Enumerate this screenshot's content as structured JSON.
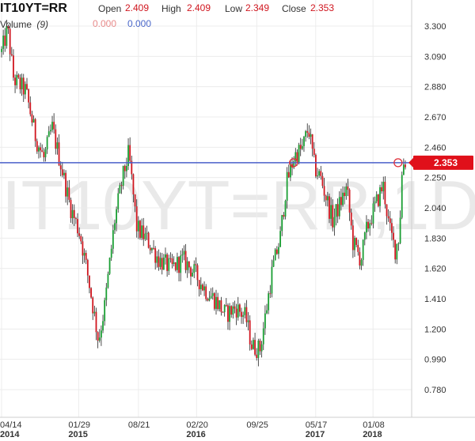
{
  "header": {
    "ticker": "IT10YT=RR",
    "open_label": "Open",
    "open_value": "2.409",
    "high_label": "High",
    "high_value": "2.409",
    "low_label": "Low",
    "low_value": "2.349",
    "close_label": "Close",
    "close_value": "2.353",
    "volume_label": "Volume",
    "volume_period": "(9)",
    "volume_value_a": "0.000",
    "volume_value_b": "0.000"
  },
  "watermark": "IT10YT=RR,1D",
  "colors": {
    "up": "#1a9e33",
    "down": "#d0161f",
    "wick": "#222222",
    "hline": "#4a5fc9",
    "price_tag": "#e0101a",
    "marker": "#e0303a",
    "grid": "#ececec"
  },
  "chart_data": {
    "type": "candlestick",
    "title": "",
    "xlabel": "",
    "ylabel": "",
    "ylim": [
      0.69,
      3.42
    ],
    "y_ticks": [
      "3.300",
      "3.090",
      "2.880",
      "2.670",
      "2.460",
      "2.250",
      "2.040",
      "1.830",
      "1.620",
      "1.410",
      "1.200",
      "0.990",
      "0.780"
    ],
    "x_ticks": [
      {
        "label": "04/14",
        "year": "2014",
        "index": 0
      },
      {
        "label": "01/29",
        "year": "2015",
        "index": 0.191
      },
      {
        "label": "08/21",
        "year": "",
        "index": 0.339
      },
      {
        "label": "02/20",
        "year": "2016",
        "index": 0.483
      },
      {
        "label": "09/25",
        "year": "",
        "index": 0.632
      },
      {
        "label": "05/17",
        "year": "2017",
        "index": 0.778
      },
      {
        "label": "01/08",
        "year": "2018",
        "index": 0.92
      }
    ],
    "horizontal_line": 2.353,
    "last_price": "2.353",
    "path_keypoints": [
      [
        0.0,
        3.12
      ],
      [
        0.015,
        3.28
      ],
      [
        0.03,
        2.93
      ],
      [
        0.06,
        2.85
      ],
      [
        0.085,
        2.52
      ],
      [
        0.105,
        2.38
      ],
      [
        0.125,
        2.6
      ],
      [
        0.15,
        2.3
      ],
      [
        0.17,
        2.05
      ],
      [
        0.195,
        1.85
      ],
      [
        0.215,
        1.55
      ],
      [
        0.24,
        1.12
      ],
      [
        0.255,
        1.35
      ],
      [
        0.28,
        1.95
      ],
      [
        0.3,
        2.25
      ],
      [
        0.315,
        2.42
      ],
      [
        0.335,
        1.9
      ],
      [
        0.36,
        1.82
      ],
      [
        0.39,
        1.68
      ],
      [
        0.42,
        1.62
      ],
      [
        0.45,
        1.68
      ],
      [
        0.48,
        1.58
      ],
      [
        0.505,
        1.47
      ],
      [
        0.53,
        1.4
      ],
      [
        0.555,
        1.3
      ],
      [
        0.58,
        1.35
      ],
      [
        0.605,
        1.28
      ],
      [
        0.62,
        1.08
      ],
      [
        0.64,
        1.06
      ],
      [
        0.655,
        1.32
      ],
      [
        0.67,
        1.6
      ],
      [
        0.69,
        1.83
      ],
      [
        0.705,
        2.2
      ],
      [
        0.725,
        2.4
      ],
      [
        0.745,
        2.45
      ],
      [
        0.76,
        2.6
      ],
      [
        0.775,
        2.32
      ],
      [
        0.79,
        2.25
      ],
      [
        0.805,
        2.1
      ],
      [
        0.82,
        1.95
      ],
      [
        0.835,
        2.05
      ],
      [
        0.855,
        2.18
      ],
      [
        0.87,
        1.8
      ],
      [
        0.89,
        1.68
      ],
      [
        0.905,
        1.9
      ],
      [
        0.925,
        2.05
      ],
      [
        0.945,
        2.2
      ],
      [
        0.96,
        1.9
      ],
      [
        0.975,
        1.75
      ],
      [
        0.985,
        1.85
      ],
      [
        0.993,
        2.35
      ],
      [
        1.0,
        2.36
      ]
    ],
    "cross_markers": [
      {
        "index": 0.723,
        "value": 2.353
      },
      {
        "index": 0.982,
        "value": 2.353
      }
    ]
  }
}
